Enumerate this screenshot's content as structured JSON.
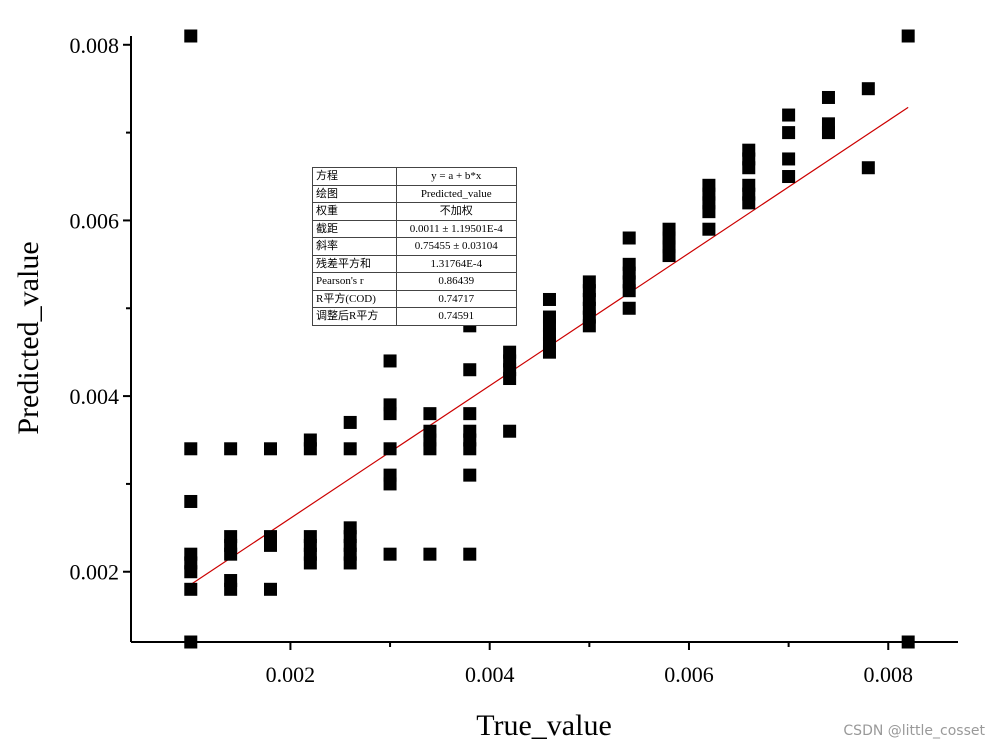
{
  "chart_data": {
    "type": "scatter",
    "xlabel": "True_value",
    "ylabel": "Predicted_value",
    "xlim": [
      0.0004,
      0.0087
    ],
    "ylim": [
      0.0012,
      0.0081
    ],
    "x_ticks": [
      0.002,
      0.004,
      0.006,
      0.008
    ],
    "y_ticks": [
      0.002,
      0.004,
      0.006,
      0.008
    ],
    "x_tick_labels": [
      "0.002",
      "0.004",
      "0.006",
      "0.008"
    ],
    "y_tick_labels": [
      "0.002",
      "0.004",
      "0.006",
      "0.008"
    ],
    "grid": false,
    "point_color": "#000000",
    "fit_line_color": "#cc0000",
    "fit": {
      "intercept": 0.0011,
      "slope": 0.75455,
      "x_range": [
        0.001,
        0.0082
      ]
    },
    "points": [
      [
        0.001,
        0.0081
      ],
      [
        0.001,
        0.0034
      ],
      [
        0.001,
        0.0028
      ],
      [
        0.001,
        0.0022
      ],
      [
        0.001,
        0.0021
      ],
      [
        0.001,
        0.002
      ],
      [
        0.001,
        0.0018
      ],
      [
        0.001,
        0.0012
      ],
      [
        0.0014,
        0.0034
      ],
      [
        0.0014,
        0.0024
      ],
      [
        0.0014,
        0.0023
      ],
      [
        0.0014,
        0.0022
      ],
      [
        0.0014,
        0.0019
      ],
      [
        0.0014,
        0.0018
      ],
      [
        0.0018,
        0.0034
      ],
      [
        0.0018,
        0.0024
      ],
      [
        0.0018,
        0.0023
      ],
      [
        0.0018,
        0.0018
      ],
      [
        0.0022,
        0.0035
      ],
      [
        0.0022,
        0.0034
      ],
      [
        0.0022,
        0.0024
      ],
      [
        0.0022,
        0.0023
      ],
      [
        0.0022,
        0.0022
      ],
      [
        0.0022,
        0.0021
      ],
      [
        0.0026,
        0.0037
      ],
      [
        0.0026,
        0.0034
      ],
      [
        0.0026,
        0.0025
      ],
      [
        0.0026,
        0.0024
      ],
      [
        0.0026,
        0.0023
      ],
      [
        0.0026,
        0.0022
      ],
      [
        0.0026,
        0.0021
      ],
      [
        0.003,
        0.0044
      ],
      [
        0.003,
        0.0039
      ],
      [
        0.003,
        0.0038
      ],
      [
        0.003,
        0.0034
      ],
      [
        0.003,
        0.0031
      ],
      [
        0.003,
        0.003
      ],
      [
        0.003,
        0.0022
      ],
      [
        0.0034,
        0.0038
      ],
      [
        0.0034,
        0.0036
      ],
      [
        0.0034,
        0.0035
      ],
      [
        0.0034,
        0.0034
      ],
      [
        0.0034,
        0.0022
      ],
      [
        0.0038,
        0.0048
      ],
      [
        0.0038,
        0.0043
      ],
      [
        0.0038,
        0.0038
      ],
      [
        0.0038,
        0.0036
      ],
      [
        0.0038,
        0.0035
      ],
      [
        0.0038,
        0.0034
      ],
      [
        0.0038,
        0.0031
      ],
      [
        0.0038,
        0.0022
      ],
      [
        0.0042,
        0.0045
      ],
      [
        0.0042,
        0.0044
      ],
      [
        0.0042,
        0.0043
      ],
      [
        0.0042,
        0.0042
      ],
      [
        0.0042,
        0.0036
      ],
      [
        0.0046,
        0.0051
      ],
      [
        0.0046,
        0.0049
      ],
      [
        0.0046,
        0.0048
      ],
      [
        0.0046,
        0.0047
      ],
      [
        0.0046,
        0.0046
      ],
      [
        0.0046,
        0.0045
      ],
      [
        0.005,
        0.0053
      ],
      [
        0.005,
        0.0052
      ],
      [
        0.005,
        0.0051
      ],
      [
        0.005,
        0.005
      ],
      [
        0.005,
        0.0049
      ],
      [
        0.005,
        0.0048
      ],
      [
        0.0054,
        0.0058
      ],
      [
        0.0054,
        0.0055
      ],
      [
        0.0054,
        0.0054
      ],
      [
        0.0054,
        0.0053
      ],
      [
        0.0054,
        0.0052
      ],
      [
        0.0054,
        0.005
      ],
      [
        0.0058,
        0.0059
      ],
      [
        0.0058,
        0.0058
      ],
      [
        0.0058,
        0.0057
      ],
      [
        0.0058,
        0.0056
      ],
      [
        0.0062,
        0.0064
      ],
      [
        0.0062,
        0.0063
      ],
      [
        0.0062,
        0.0062
      ],
      [
        0.0062,
        0.0061
      ],
      [
        0.0062,
        0.0059
      ],
      [
        0.0066,
        0.0068
      ],
      [
        0.0066,
        0.0067
      ],
      [
        0.0066,
        0.0066
      ],
      [
        0.0066,
        0.0064
      ],
      [
        0.0066,
        0.0063
      ],
      [
        0.0066,
        0.0062
      ],
      [
        0.007,
        0.0072
      ],
      [
        0.007,
        0.007
      ],
      [
        0.007,
        0.0067
      ],
      [
        0.007,
        0.0065
      ],
      [
        0.0074,
        0.0074
      ],
      [
        0.0074,
        0.0071
      ],
      [
        0.0074,
        0.007
      ],
      [
        0.0078,
        0.0075
      ],
      [
        0.0078,
        0.0066
      ],
      [
        0.0082,
        0.0081
      ],
      [
        0.0082,
        0.0012
      ]
    ],
    "stats_table": [
      {
        "label": "方程",
        "value": "y = a + b*x"
      },
      {
        "label": "绘图",
        "value": "Predicted_value"
      },
      {
        "label": "权重",
        "value": "不加权"
      },
      {
        "label": "截距",
        "value": "0.0011 ± 1.19501E-4"
      },
      {
        "label": "斜率",
        "value": "0.75455 ± 0.03104"
      },
      {
        "label": "残差平方和",
        "value": "1.31764E-4"
      },
      {
        "label": "Pearson's r",
        "value": "0.86439"
      },
      {
        "label": "R平方(COD)",
        "value": "0.74717"
      },
      {
        "label": "调整后R平方",
        "value": "0.74591"
      }
    ]
  },
  "watermark": "CSDN @little_cosset"
}
